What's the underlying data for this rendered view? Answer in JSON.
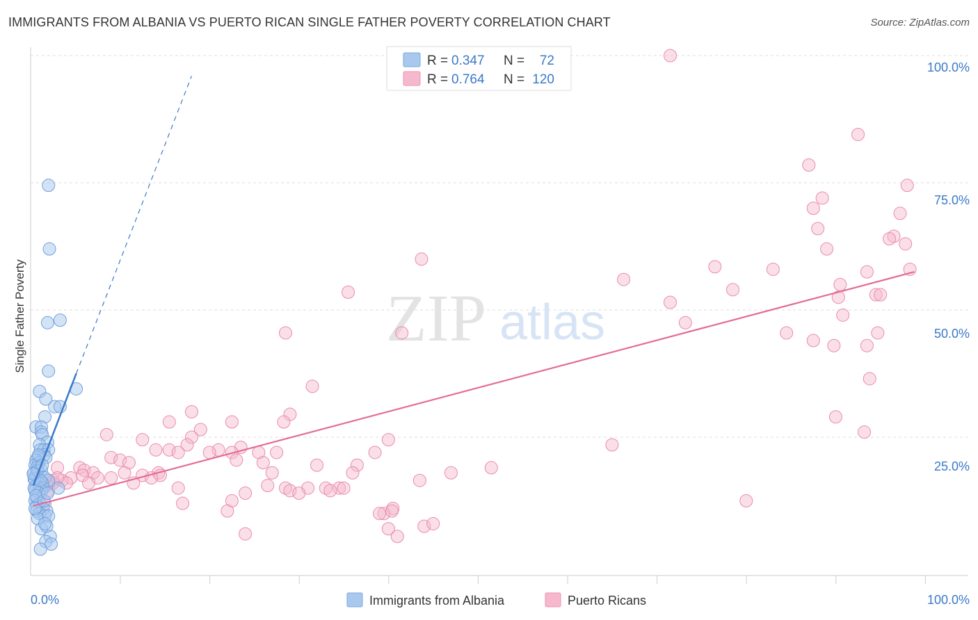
{
  "header": {
    "title": "IMMIGRANTS FROM ALBANIA VS PUERTO RICAN SINGLE FATHER POVERTY CORRELATION CHART",
    "source": "Source: ZipAtlas.com"
  },
  "watermark": {
    "zip": "ZIP",
    "atlas": "atlas"
  },
  "legend": {
    "series1": {
      "r_label": "R = ",
      "r_value": "0.347",
      "n_label": "N = ",
      "n_value": "72",
      "color": "#a8c8ee"
    },
    "series2": {
      "r_label": "R = ",
      "r_value": "0.764",
      "n_label": "N = ",
      "n_value": "120",
      "color": "#f5b8cc"
    }
  },
  "bottom_legend": {
    "series1": "Immigrants from Albania",
    "series2": "Puerto Ricans"
  },
  "colors": {
    "blue": "#3a78c9",
    "blue_fill": "#a8c8ee",
    "pink": "#e46b97",
    "pink_fill": "#f5b8cc",
    "grid": "#dddddd"
  },
  "chart_data": {
    "type": "scatter",
    "title": "IMMIGRANTS FROM ALBANIA VS PUERTO RICAN SINGLE FATHER POVERTY CORRELATION CHART",
    "xlabel": "",
    "ylabel": "Single Father Poverty",
    "xlim": [
      0,
      100
    ],
    "ylim": [
      0,
      100
    ],
    "x_tick_labels": [
      "0.0%",
      "100.0%"
    ],
    "y_tick_labels": [
      "25.0%",
      "50.0%",
      "75.0%",
      "100.0%"
    ],
    "y_ticks": [
      25,
      50,
      75,
      100
    ],
    "grid": true,
    "series": [
      {
        "name": "Immigrants from Albania",
        "stats": {
          "R": 0.347,
          "N": 72
        },
        "trend": {
          "x0": 0.3,
          "y0": 15.5,
          "x1": 5.1,
          "y1": 37.5,
          "dash_to": [
            18.0,
            96.0
          ]
        },
        "points": [
          [
            2.0,
            74.5
          ],
          [
            2.1,
            62.0
          ],
          [
            3.3,
            48.0
          ],
          [
            1.9,
            47.5
          ],
          [
            2.0,
            38.0
          ],
          [
            5.1,
            34.5
          ],
          [
            1.0,
            34.0
          ],
          [
            1.7,
            32.5
          ],
          [
            2.7,
            31.0
          ],
          [
            3.3,
            31.0
          ],
          [
            1.6,
            29.0
          ],
          [
            0.6,
            27.0
          ],
          [
            1.2,
            27.0
          ],
          [
            1.2,
            26.0
          ],
          [
            1.3,
            25.5
          ],
          [
            1.9,
            24.0
          ],
          [
            1.0,
            23.5
          ],
          [
            1.1,
            22.5
          ],
          [
            1.5,
            22.5
          ],
          [
            2.0,
            22.5
          ],
          [
            1.5,
            21.5
          ],
          [
            1.7,
            21.0
          ],
          [
            0.8,
            21.0
          ],
          [
            0.6,
            20.5
          ],
          [
            0.9,
            20.0
          ],
          [
            0.5,
            19.5
          ],
          [
            0.7,
            19.0
          ],
          [
            1.2,
            18.5
          ],
          [
            0.4,
            18.0
          ],
          [
            0.6,
            17.5
          ],
          [
            0.8,
            17.0
          ],
          [
            0.5,
            16.5
          ],
          [
            1.6,
            17.0
          ],
          [
            2.0,
            16.5
          ],
          [
            1.3,
            16.0
          ],
          [
            0.9,
            16.0
          ],
          [
            0.6,
            15.5
          ],
          [
            1.0,
            15.0
          ],
          [
            1.4,
            15.0
          ],
          [
            3.1,
            15.0
          ],
          [
            0.5,
            14.5
          ],
          [
            1.2,
            14.5
          ],
          [
            0.9,
            14.0
          ],
          [
            0.7,
            13.0
          ],
          [
            0.5,
            12.5
          ],
          [
            1.0,
            12.0
          ],
          [
            0.7,
            11.5
          ],
          [
            1.4,
            11.0
          ],
          [
            1.8,
            10.5
          ],
          [
            0.7,
            10.5
          ],
          [
            1.0,
            10.0
          ],
          [
            1.6,
            9.5
          ],
          [
            0.8,
            9.0
          ],
          [
            2.0,
            9.5
          ],
          [
            1.2,
            7.0
          ],
          [
            1.8,
            7.5
          ],
          [
            2.2,
            5.5
          ],
          [
            1.7,
            4.5
          ],
          [
            2.3,
            4.0
          ],
          [
            1.1,
            3.0
          ],
          [
            0.4,
            15.0
          ],
          [
            0.4,
            16.8
          ],
          [
            0.5,
            11.0
          ],
          [
            0.6,
            13.5
          ],
          [
            0.8,
            18.5
          ],
          [
            1.1,
            16.5
          ],
          [
            1.5,
            12.5
          ],
          [
            0.9,
            21.5
          ],
          [
            1.3,
            19.5
          ],
          [
            0.3,
            17.8
          ],
          [
            1.9,
            14.0
          ],
          [
            1.6,
            8.0
          ]
        ]
      },
      {
        "name": "Puerto Ricans",
        "stats": {
          "R": 0.764,
          "N": 120
        },
        "trend": {
          "x0": 0.3,
          "y0": 11.5,
          "x1": 98.8,
          "y1": 57.5
        },
        "points": [
          [
            71.5,
            100.0
          ],
          [
            92.5,
            84.5
          ],
          [
            87.0,
            78.5
          ],
          [
            98.0,
            74.5
          ],
          [
            88.5,
            72.0
          ],
          [
            87.5,
            70.0
          ],
          [
            97.2,
            69.0
          ],
          [
            88.0,
            66.0
          ],
          [
            96.5,
            64.5
          ],
          [
            96.0,
            64.0
          ],
          [
            97.8,
            63.0
          ],
          [
            89.0,
            62.0
          ],
          [
            43.7,
            60.0
          ],
          [
            76.5,
            58.5
          ],
          [
            83.0,
            58.0
          ],
          [
            98.3,
            58.0
          ],
          [
            93.5,
            57.5
          ],
          [
            66.3,
            56.0
          ],
          [
            90.5,
            55.0
          ],
          [
            78.5,
            54.0
          ],
          [
            35.5,
            53.5
          ],
          [
            94.5,
            53.0
          ],
          [
            95.0,
            53.0
          ],
          [
            90.3,
            52.5
          ],
          [
            71.5,
            51.5
          ],
          [
            90.8,
            49.0
          ],
          [
            73.2,
            47.5
          ],
          [
            84.5,
            45.5
          ],
          [
            94.7,
            45.5
          ],
          [
            28.5,
            45.5
          ],
          [
            41.5,
            45.5
          ],
          [
            87.5,
            44.0
          ],
          [
            89.8,
            43.0
          ],
          [
            93.5,
            43.0
          ],
          [
            93.8,
            36.5
          ],
          [
            31.5,
            35.0
          ],
          [
            90.0,
            29.0
          ],
          [
            29.0,
            29.5
          ],
          [
            18.0,
            30.0
          ],
          [
            28.3,
            28.0
          ],
          [
            15.5,
            28.0
          ],
          [
            22.5,
            28.0
          ],
          [
            93.2,
            26.0
          ],
          [
            19.0,
            26.5
          ],
          [
            8.5,
            25.5
          ],
          [
            18.0,
            25.0
          ],
          [
            12.5,
            24.5
          ],
          [
            40.0,
            24.5
          ],
          [
            65.0,
            23.5
          ],
          [
            17.5,
            23.5
          ],
          [
            14.0,
            22.5
          ],
          [
            21.0,
            22.5
          ],
          [
            15.5,
            22.5
          ],
          [
            16.5,
            22.0
          ],
          [
            23.5,
            23.0
          ],
          [
            22.5,
            22.0
          ],
          [
            20.0,
            22.0
          ],
          [
            38.5,
            22.0
          ],
          [
            25.5,
            22.0
          ],
          [
            27.5,
            22.0
          ],
          [
            23.0,
            20.5
          ],
          [
            9.0,
            21.0
          ],
          [
            10.0,
            20.5
          ],
          [
            11.0,
            20.0
          ],
          [
            26.0,
            20.0
          ],
          [
            32.0,
            19.5
          ],
          [
            36.5,
            19.5
          ],
          [
            51.5,
            19.0
          ],
          [
            3.0,
            19.0
          ],
          [
            5.5,
            19.0
          ],
          [
            6.0,
            18.5
          ],
          [
            7.0,
            18.0
          ],
          [
            10.5,
            18.0
          ],
          [
            14.3,
            18.0
          ],
          [
            27.0,
            18.0
          ],
          [
            14.5,
            17.5
          ],
          [
            12.5,
            17.5
          ],
          [
            13.5,
            17.0
          ],
          [
            36.0,
            18.0
          ],
          [
            47.0,
            18.0
          ],
          [
            4.5,
            17.0
          ],
          [
            5.8,
            17.5
          ],
          [
            7.5,
            17.0
          ],
          [
            3.5,
            16.5
          ],
          [
            2.5,
            16.5
          ],
          [
            9.0,
            17.0
          ],
          [
            11.5,
            16.0
          ],
          [
            4.0,
            16.0
          ],
          [
            6.5,
            16.0
          ],
          [
            2.5,
            16.0
          ],
          [
            1.8,
            15.5
          ],
          [
            43.5,
            16.5
          ],
          [
            28.5,
            15.0
          ],
          [
            26.5,
            15.5
          ],
          [
            31.0,
            15.0
          ],
          [
            33.0,
            15.0
          ],
          [
            34.5,
            15.0
          ],
          [
            35.0,
            15.0
          ],
          [
            16.5,
            15.0
          ],
          [
            2.0,
            14.5
          ],
          [
            29.0,
            14.5
          ],
          [
            30.0,
            14.0
          ],
          [
            24.0,
            14.0
          ],
          [
            33.5,
            14.5
          ],
          [
            22.5,
            12.5
          ],
          [
            17.0,
            12.0
          ],
          [
            40.5,
            11.0
          ],
          [
            22.0,
            10.5
          ],
          [
            39.5,
            10.0
          ],
          [
            80.0,
            12.5
          ],
          [
            40.0,
            7.0
          ],
          [
            44.0,
            7.5
          ],
          [
            41.0,
            5.5
          ],
          [
            24.0,
            6.0
          ],
          [
            45.0,
            8.0
          ],
          [
            40.4,
            10.5
          ],
          [
            39.0,
            10.0
          ],
          [
            1.6,
            12.0
          ],
          [
            3.0,
            17.0
          ],
          [
            2.0,
            16.0
          ]
        ]
      }
    ]
  }
}
